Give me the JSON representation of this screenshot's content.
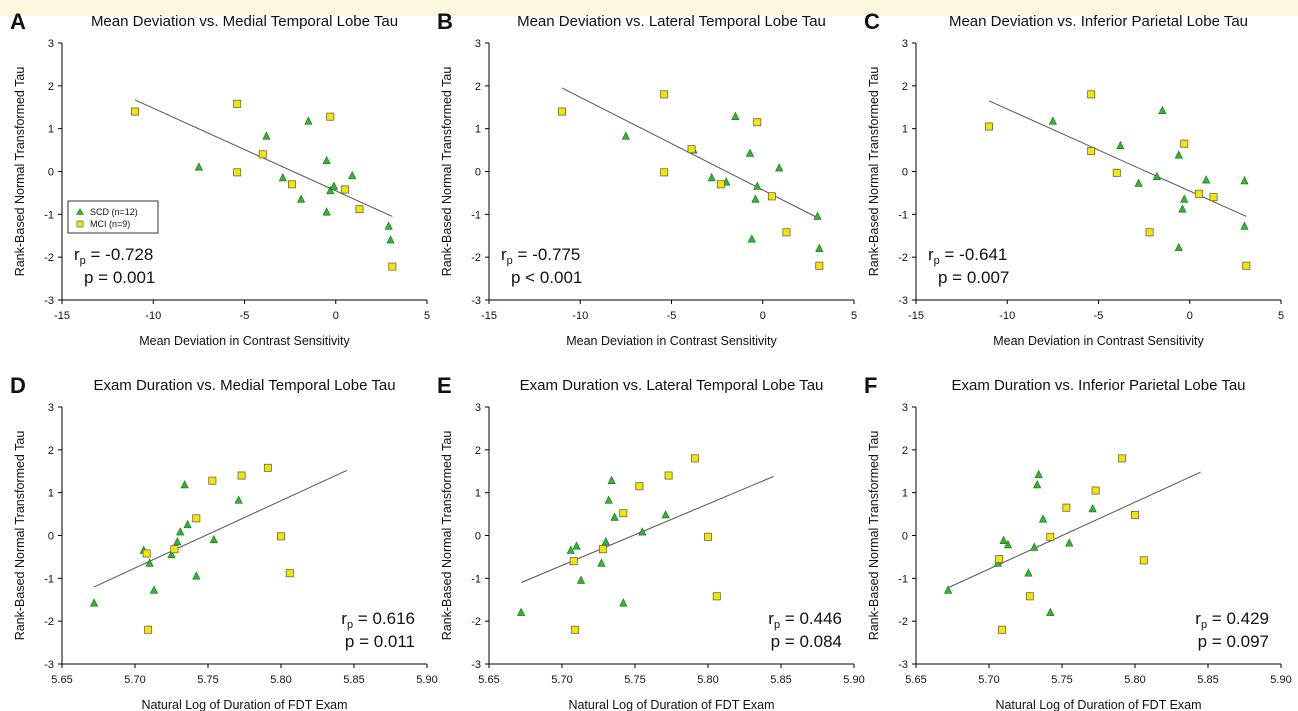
{
  "chart_data": [
    {
      "type": "scatter",
      "panel": "A",
      "title": "Mean Deviation vs. Medial Temporal Lobe Tau",
      "xlabel": "Mean Deviation in Contrast Sensitivity",
      "ylabel": "Rank-Based Normal Transformed Tau",
      "xlim": [
        -15,
        5
      ],
      "ylim": [
        -3,
        3
      ],
      "xticks": [
        -15,
        -10,
        -5,
        0,
        5
      ],
      "yticks": [
        -3,
        -2,
        -1,
        0,
        1,
        2,
        3
      ],
      "fit_line": [
        [
          -11,
          1.67
        ],
        [
          3.1,
          -1.05
        ]
      ],
      "legend": [
        {
          "label": "SCD (n=12)",
          "marker": "triangle",
          "color": "#2eb82e"
        },
        {
          "label": "MCI (n=9)",
          "marker": "square",
          "color": "#f2e600"
        }
      ],
      "stats": {
        "r_main": "r",
        "r_sub": "p",
        "r_value": " = -0.728",
        "p_text": "p = 0.001",
        "position": "bottom-left"
      },
      "series": [
        {
          "name": "SCD (n=12)",
          "marker": "triangle",
          "color": "#2eb82e",
          "points": [
            [
              -7.5,
              0.1
            ],
            [
              -3.8,
              0.82
            ],
            [
              -1.5,
              1.17
            ],
            [
              -2.9,
              -0.15
            ],
            [
              -1.9,
              -0.65
            ],
            [
              -0.5,
              -0.95
            ],
            [
              -0.5,
              0.25
            ],
            [
              -0.3,
              -0.45
            ],
            [
              -0.1,
              -0.35
            ],
            [
              0.9,
              -0.1
            ],
            [
              2.9,
              -1.28
            ],
            [
              3.0,
              -1.6
            ]
          ]
        },
        {
          "name": "MCI (n=9)",
          "marker": "square",
          "color": "#f2e600",
          "points": [
            [
              -11.0,
              1.4
            ],
            [
              -5.4,
              1.58
            ],
            [
              -5.4,
              -0.02
            ],
            [
              -4.0,
              0.4
            ],
            [
              -2.4,
              -0.3
            ],
            [
              -0.3,
              1.28
            ],
            [
              0.5,
              -0.42
            ],
            [
              1.3,
              -0.88
            ],
            [
              3.1,
              -2.22
            ]
          ]
        }
      ]
    },
    {
      "type": "scatter",
      "panel": "B",
      "title": "Mean Deviation vs. Lateral Temporal Lobe Tau",
      "xlabel": "Mean Deviation in Contrast Sensitivity",
      "ylabel": "Rank-Based Normal Transformed Tau",
      "xlim": [
        -15,
        5
      ],
      "ylim": [
        -3,
        3
      ],
      "xticks": [
        -15,
        -10,
        -5,
        0,
        5
      ],
      "yticks": [
        -3,
        -2,
        -1,
        0,
        1,
        2,
        3
      ],
      "fit_line": [
        [
          -11,
          1.95
        ],
        [
          3.1,
          -1.1
        ]
      ],
      "legend": [],
      "stats": {
        "r_main": "r",
        "r_sub": "p",
        "r_value": " = -0.775",
        "p_text": "p < 0.001",
        "position": "bottom-left"
      },
      "series": [
        {
          "name": "SCD (n=12)",
          "marker": "triangle",
          "color": "#2eb82e",
          "points": [
            [
              -7.5,
              0.82
            ],
            [
              -3.8,
              0.5
            ],
            [
              -2.8,
              -0.15
            ],
            [
              -2.0,
              -0.25
            ],
            [
              -1.5,
              1.28
            ],
            [
              -0.7,
              0.42
            ],
            [
              -0.4,
              -0.65
            ],
            [
              -0.3,
              -0.35
            ],
            [
              0.9,
              0.08
            ],
            [
              -0.6,
              -1.58
            ],
            [
              3.0,
              -1.05
            ],
            [
              3.1,
              -1.8
            ]
          ]
        },
        {
          "name": "MCI (n=9)",
          "marker": "square",
          "color": "#f2e600",
          "points": [
            [
              -11.0,
              1.4
            ],
            [
              -5.4,
              1.8
            ],
            [
              -5.4,
              -0.02
            ],
            [
              -3.9,
              0.52
            ],
            [
              -2.3,
              -0.3
            ],
            [
              -0.3,
              1.15
            ],
            [
              0.5,
              -0.58
            ],
            [
              1.3,
              -1.42
            ],
            [
              3.1,
              -2.2
            ]
          ]
        }
      ]
    },
    {
      "type": "scatter",
      "panel": "C",
      "title": "Mean Deviation vs. Inferior Parietal Lobe Tau",
      "xlabel": "Mean Deviation in Contrast Sensitivity",
      "ylabel": "Rank-Based Normal Transformed Tau",
      "xlim": [
        -15,
        5
      ],
      "ylim": [
        -3,
        3
      ],
      "xticks": [
        -15,
        -10,
        -5,
        0,
        5
      ],
      "yticks": [
        -3,
        -2,
        -1,
        0,
        1,
        2,
        3
      ],
      "fit_line": [
        [
          -11,
          1.65
        ],
        [
          3.1,
          -1.05
        ]
      ],
      "legend": [],
      "stats": {
        "r_main": "r",
        "r_sub": "p",
        "r_value": " = -0.641",
        "p_text": "p = 0.007",
        "position": "bottom-left"
      },
      "series": [
        {
          "name": "SCD (n=12)",
          "marker": "triangle",
          "color": "#2eb82e",
          "points": [
            [
              -7.5,
              1.17
            ],
            [
              -3.8,
              0.6
            ],
            [
              -2.8,
              -0.28
            ],
            [
              -1.8,
              -0.12
            ],
            [
              -1.5,
              1.42
            ],
            [
              -0.6,
              0.38
            ],
            [
              -0.4,
              -0.88
            ],
            [
              -0.3,
              -0.65
            ],
            [
              -0.6,
              -1.78
            ],
            [
              0.9,
              -0.2
            ],
            [
              3.0,
              -0.22
            ],
            [
              3.0,
              -1.28
            ]
          ]
        },
        {
          "name": "MCI (n=9)",
          "marker": "square",
          "color": "#f2e600",
          "points": [
            [
              -11.0,
              1.05
            ],
            [
              -5.4,
              1.8
            ],
            [
              -5.4,
              0.48
            ],
            [
              -4.0,
              -0.03
            ],
            [
              -2.2,
              -1.42
            ],
            [
              -0.3,
              0.65
            ],
            [
              0.5,
              -0.52
            ],
            [
              1.3,
              -0.6
            ],
            [
              3.1,
              -2.2
            ]
          ]
        }
      ]
    },
    {
      "type": "scatter",
      "panel": "D",
      "title": "Exam Duration vs. Medial Temporal Lobe Tau",
      "xlabel": "Natural Log of Duration of FDT Exam",
      "ylabel": "Rank-Based Normal Transformed Tau",
      "xlim": [
        5.65,
        5.9
      ],
      "ylim": [
        -3,
        3
      ],
      "xticks": [
        5.65,
        5.7,
        5.75,
        5.8,
        5.85,
        5.9
      ],
      "yticks": [
        -3,
        -2,
        -1,
        0,
        1,
        2,
        3
      ],
      "fit_line": [
        [
          5.672,
          -1.2
        ],
        [
          5.845,
          1.52
        ]
      ],
      "legend": [],
      "stats": {
        "r_main": "r",
        "r_sub": "p",
        "r_value": " = 0.616",
        "p_text": "p = 0.011",
        "position": "bottom-right"
      },
      "series": [
        {
          "name": "SCD (n=12)",
          "marker": "triangle",
          "color": "#2eb82e",
          "points": [
            [
              5.672,
              -1.58
            ],
            [
              5.706,
              -0.35
            ],
            [
              5.71,
              -0.65
            ],
            [
              5.713,
              -1.28
            ],
            [
              5.725,
              -0.45
            ],
            [
              5.729,
              -0.15
            ],
            [
              5.731,
              0.08
            ],
            [
              5.734,
              1.18
            ],
            [
              5.736,
              0.25
            ],
            [
              5.742,
              -0.95
            ],
            [
              5.754,
              -0.1
            ],
            [
              5.771,
              0.82
            ]
          ]
        },
        {
          "name": "MCI (n=9)",
          "marker": "square",
          "color": "#f2e600",
          "points": [
            [
              5.708,
              -0.42
            ],
            [
              5.709,
              -2.2
            ],
            [
              5.727,
              -0.32
            ],
            [
              5.742,
              0.4
            ],
            [
              5.753,
              1.28
            ],
            [
              5.773,
              1.4
            ],
            [
              5.791,
              1.58
            ],
            [
              5.8,
              -0.02
            ],
            [
              5.806,
              -0.88
            ]
          ]
        }
      ]
    },
    {
      "type": "scatter",
      "panel": "E",
      "title": "Exam Duration vs. Lateral Temporal Lobe Tau",
      "xlabel": "Natural Log of Duration of FDT Exam",
      "ylabel": "Rank-Based Normal Transformed Tau",
      "xlim": [
        5.65,
        5.9
      ],
      "ylim": [
        -3,
        3
      ],
      "xticks": [
        5.65,
        5.7,
        5.75,
        5.8,
        5.85,
        5.9
      ],
      "yticks": [
        -3,
        -2,
        -1,
        0,
        1,
        2,
        3
      ],
      "fit_line": [
        [
          5.672,
          -1.1
        ],
        [
          5.845,
          1.38
        ]
      ],
      "legend": [],
      "stats": {
        "r_main": "r",
        "r_sub": "p",
        "r_value": " = 0.446",
        "p_text": "p = 0.084",
        "position": "bottom-right"
      },
      "series": [
        {
          "name": "SCD (n=12)",
          "marker": "triangle",
          "color": "#2eb82e",
          "points": [
            [
              5.672,
              -1.8
            ],
            [
              5.706,
              -0.35
            ],
            [
              5.71,
              -0.25
            ],
            [
              5.713,
              -1.05
            ],
            [
              5.727,
              -0.65
            ],
            [
              5.73,
              -0.15
            ],
            [
              5.732,
              0.82
            ],
            [
              5.734,
              1.28
            ],
            [
              5.736,
              0.42
            ],
            [
              5.742,
              -1.58
            ],
            [
              5.755,
              0.08
            ],
            [
              5.771,
              0.48
            ]
          ]
        },
        {
          "name": "MCI (n=9)",
          "marker": "square",
          "color": "#f2e600",
          "points": [
            [
              5.708,
              -0.6
            ],
            [
              5.709,
              -2.2
            ],
            [
              5.728,
              -0.32
            ],
            [
              5.742,
              0.52
            ],
            [
              5.753,
              1.15
            ],
            [
              5.773,
              1.4
            ],
            [
              5.791,
              1.8
            ],
            [
              5.8,
              -0.03
            ],
            [
              5.806,
              -1.42
            ]
          ]
        }
      ]
    },
    {
      "type": "scatter",
      "panel": "F",
      "title": "Exam Duration vs. Inferior Parietal Lobe Tau",
      "xlabel": "Natural Log of Duration of FDT Exam",
      "ylabel": "Rank-Based Normal Transformed Tau",
      "xlim": [
        5.65,
        5.9
      ],
      "ylim": [
        -3,
        3
      ],
      "xticks": [
        5.65,
        5.7,
        5.75,
        5.8,
        5.85,
        5.9
      ],
      "yticks": [
        -3,
        -2,
        -1,
        0,
        1,
        2,
        3
      ],
      "fit_line": [
        [
          5.672,
          -1.22
        ],
        [
          5.845,
          1.48
        ]
      ],
      "legend": [],
      "stats": {
        "r_main": "r",
        "r_sub": "p",
        "r_value": " = 0.429",
        "p_text": "p = 0.097",
        "position": "bottom-right"
      },
      "series": [
        {
          "name": "SCD (n=12)",
          "marker": "triangle",
          "color": "#2eb82e",
          "points": [
            [
              5.672,
              -1.28
            ],
            [
              5.706,
              -0.65
            ],
            [
              5.71,
              -0.12
            ],
            [
              5.713,
              -0.22
            ],
            [
              5.727,
              -0.88
            ],
            [
              5.731,
              -0.28
            ],
            [
              5.733,
              1.18
            ],
            [
              5.734,
              1.42
            ],
            [
              5.737,
              0.38
            ],
            [
              5.742,
              -1.8
            ],
            [
              5.755,
              -0.18
            ],
            [
              5.771,
              0.62
            ]
          ]
        },
        {
          "name": "MCI (n=9)",
          "marker": "square",
          "color": "#f2e600",
          "points": [
            [
              5.707,
              -0.55
            ],
            [
              5.709,
              -2.2
            ],
            [
              5.728,
              -1.42
            ],
            [
              5.742,
              -0.03
            ],
            [
              5.753,
              0.65
            ],
            [
              5.773,
              1.05
            ],
            [
              5.791,
              1.8
            ],
            [
              5.8,
              0.48
            ],
            [
              5.806,
              -0.58
            ]
          ]
        }
      ]
    }
  ]
}
